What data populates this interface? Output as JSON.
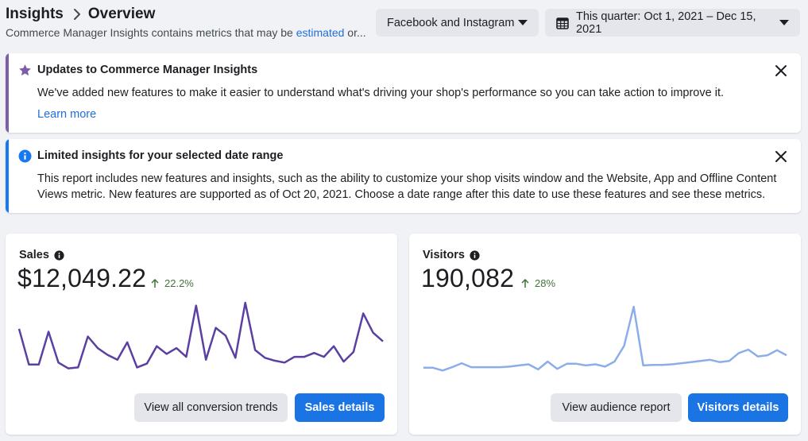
{
  "header": {
    "breadcrumb_root": "Insights",
    "breadcrumb_current": "Overview",
    "subtitle_text": "Commerce Manager Insights contains metrics that may be",
    "subtitle_link": "estimated",
    "subtitle_tail": "or..."
  },
  "filters": {
    "platform": "Facebook and Instagram",
    "date_range": "This quarter: Oct 1, 2021 – Dec 15, 2021"
  },
  "banners": {
    "updates": {
      "title": "Updates to Commerce Manager Insights",
      "body": "We've added new features to make it easier to understand what's driving your shop's performance so you can take action to improve it.",
      "link": "Learn more",
      "accent": "#7b5ea7"
    },
    "limited": {
      "title": "Limited insights for your selected date range",
      "body": "This report includes new features and insights, such as the ability to customize your shop visits window and the Website, App and Offline Content Views metric. New features are supported as of Oct 20, 2021. Choose a date range after this date to use these features and see these metrics.",
      "accent": "#1877f2"
    }
  },
  "cards": {
    "sales": {
      "label": "Sales",
      "value": "$12,049.22",
      "change": "22.2%",
      "line_color": "#5b3fa1",
      "series": [
        52,
        15,
        15,
        49,
        17,
        11,
        12,
        44,
        32,
        25,
        20,
        38,
        12,
        16,
        34,
        26,
        32,
        23,
        76,
        20,
        53,
        45,
        22,
        79,
        30,
        22,
        19,
        17,
        23,
        23,
        27,
        23,
        34,
        18,
        28,
        68,
        48,
        39
      ],
      "secondary_button": "View all conversion trends",
      "primary_button": "Sales details"
    },
    "visitors": {
      "label": "Visitors",
      "value": "190,082",
      "change": "28%",
      "line_color": "#8caee8",
      "series": [
        20,
        20,
        15,
        21,
        28,
        21,
        21,
        21,
        21,
        22,
        24,
        26,
        17,
        31,
        18,
        27,
        27,
        24,
        26,
        22,
        31,
        59,
        128,
        24,
        25,
        25,
        26,
        28,
        30,
        32,
        34,
        30,
        32,
        46,
        52,
        40,
        42,
        51,
        42
      ],
      "secondary_button": "View audience report",
      "primary_button": "Visitors details"
    }
  }
}
